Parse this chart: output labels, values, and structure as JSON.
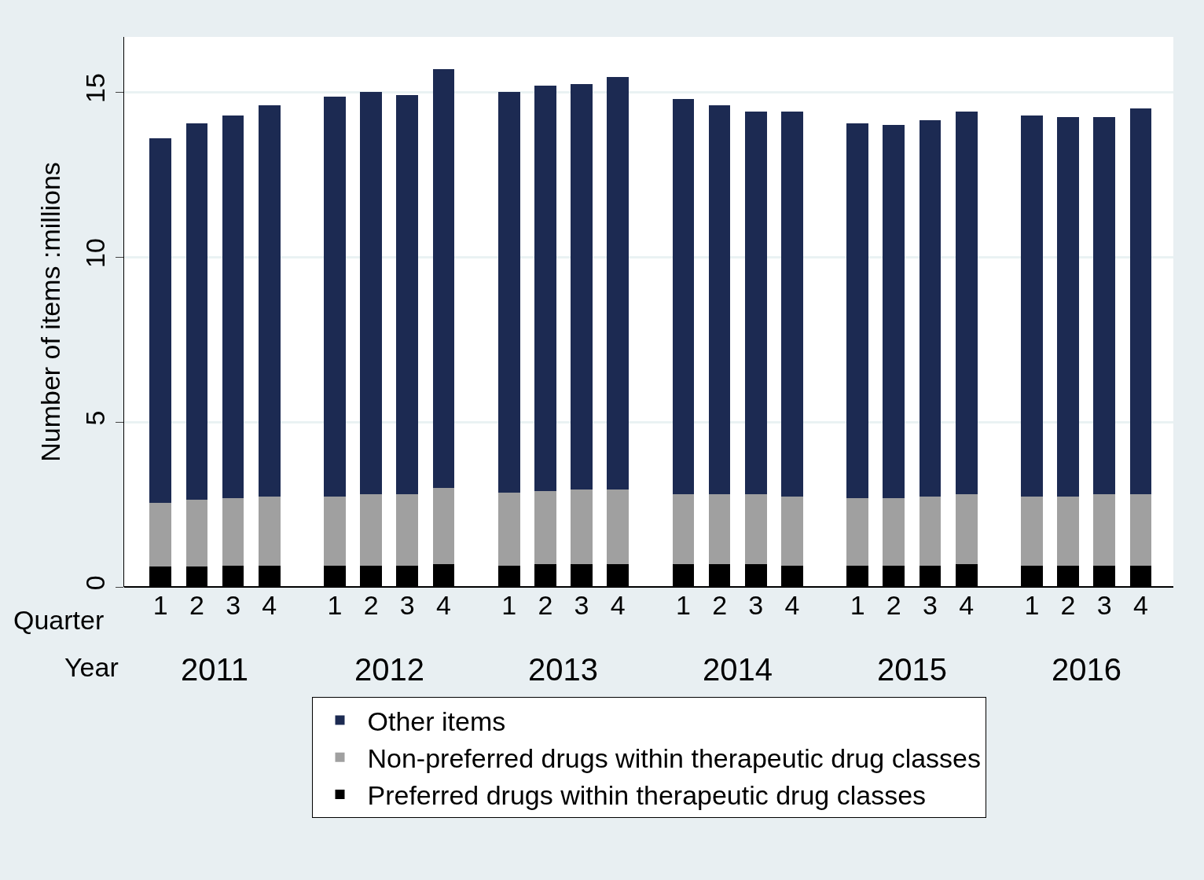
{
  "chart_data": {
    "type": "bar",
    "stacked": true,
    "ylabel": "Number of items :millions",
    "categories": [
      "1",
      "2",
      "3",
      "4",
      "1",
      "2",
      "3",
      "4",
      "1",
      "2",
      "3",
      "4",
      "1",
      "2",
      "3",
      "4",
      "1",
      "2",
      "3",
      "4",
      "1",
      "2",
      "3",
      "4"
    ],
    "annotations": [
      "Quarter",
      "Year",
      "2011",
      "2012",
      "2013",
      "2014",
      "2015",
      "2016"
    ],
    "series": [
      {
        "name": "Preferred drugs within therapeutic drug classes",
        "color": "#000000",
        "values": [
          0.62,
          0.63,
          0.65,
          0.65,
          0.65,
          0.65,
          0.65,
          0.68,
          0.65,
          0.68,
          0.7,
          0.7,
          0.68,
          0.68,
          0.68,
          0.65,
          0.65,
          0.65,
          0.65,
          0.68,
          0.65,
          0.65,
          0.65,
          0.65
        ]
      },
      {
        "name": "Non-preferred drugs within therapeutic drug classes",
        "color": "#a0a0a0",
        "values": [
          1.93,
          2.02,
          2.05,
          2.1,
          2.1,
          2.15,
          2.15,
          2.32,
          2.2,
          2.22,
          2.25,
          2.25,
          2.12,
          2.12,
          2.12,
          2.1,
          2.05,
          2.05,
          2.1,
          2.12,
          2.1,
          2.1,
          2.15,
          2.15
        ]
      },
      {
        "name": "Other items",
        "color": "#1c2a52",
        "values": [
          11.05,
          11.4,
          11.6,
          11.85,
          12.1,
          12.2,
          12.1,
          12.7,
          12.15,
          12.3,
          12.3,
          12.5,
          12.0,
          11.8,
          11.6,
          11.65,
          11.35,
          11.3,
          11.4,
          11.6,
          11.55,
          11.5,
          11.45,
          11.7
        ]
      }
    ],
    "ylim": [
      0,
      16.67
    ],
    "yticks": [
      0,
      5,
      10,
      15
    ],
    "grid": "y",
    "legend": "bottom"
  }
}
